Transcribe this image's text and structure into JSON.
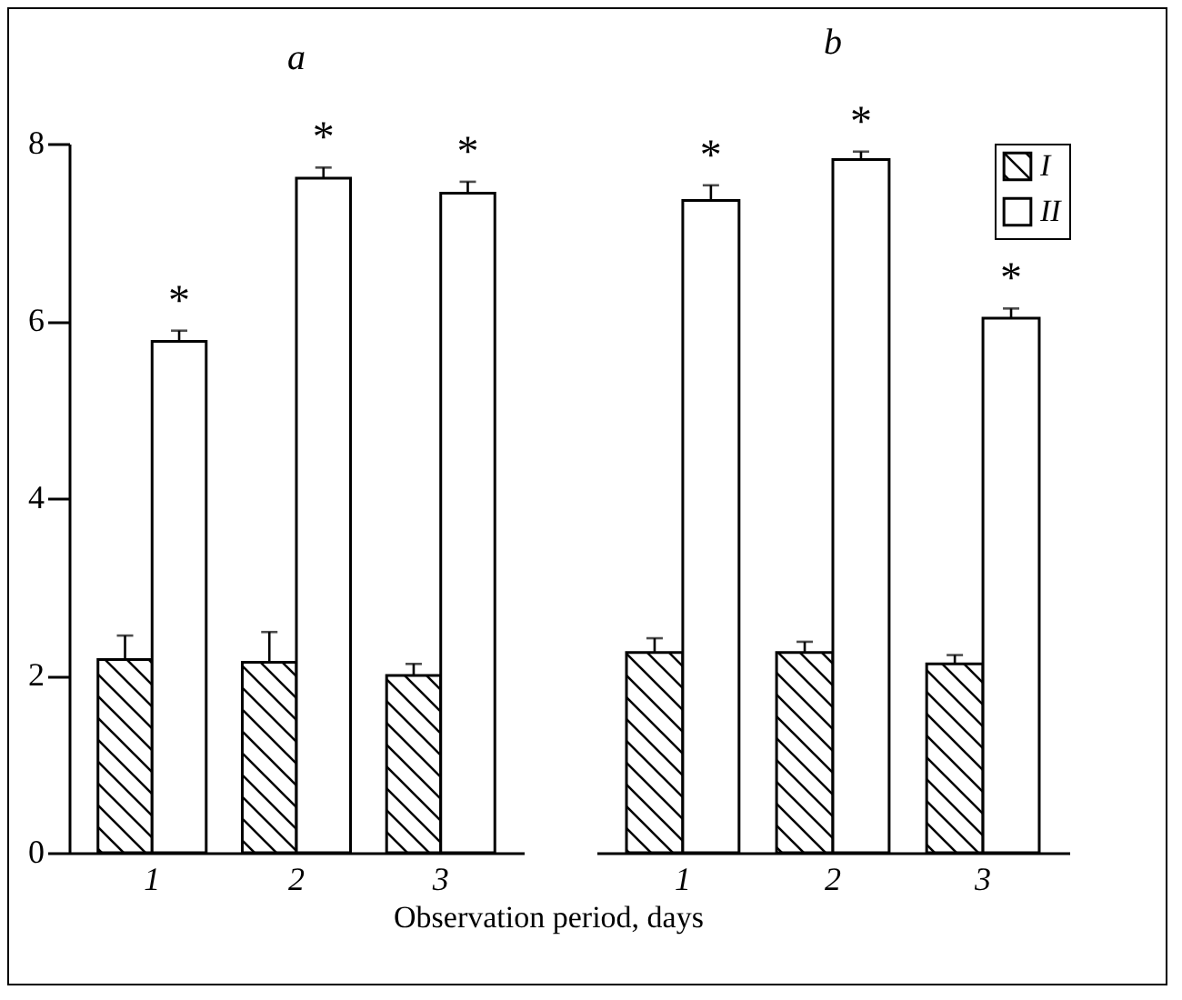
{
  "chart_data": [
    {
      "type": "bar",
      "title": "a",
      "xlabel": "Observation period, days",
      "categories": [
        "1",
        "2",
        "3"
      ],
      "ylim": [
        0,
        8
      ],
      "yticks": [
        0,
        2,
        4,
        6,
        8
      ],
      "legend": false,
      "series": [
        {
          "color": "#000000",
          "values": [
            2.18,
            2.15,
            2.0
          ],
          "errors": [
            0.27,
            0.34,
            0.13
          ]
        },
        {
          "color": "#ffffff",
          "values": [
            5.77,
            7.61,
            7.44
          ],
          "errors": [
            0.12,
            0.12,
            0.13
          ]
        }
      ],
      "annotations": [
        "*",
        "*",
        "*"
      ]
    },
    {
      "type": "bar",
      "title": "b",
      "categories": [
        "1",
        "2",
        "3"
      ],
      "ylim": [
        0,
        8
      ],
      "yticks": [
        0,
        2,
        4,
        6,
        8
      ],
      "tick_labels": "x",
      "legend": "top right",
      "series": [
        {
          "name": "I",
          "color": "#000000",
          "values": [
            2.26,
            2.26,
            2.13
          ],
          "errors": [
            0.16,
            0.12,
            0.1
          ]
        },
        {
          "name": "II",
          "color": "#ffffff",
          "values": [
            7.36,
            7.82,
            6.03
          ],
          "errors": [
            0.17,
            0.09,
            0.11
          ]
        }
      ],
      "annotations": [
        "*",
        "*",
        "*"
      ]
    }
  ]
}
